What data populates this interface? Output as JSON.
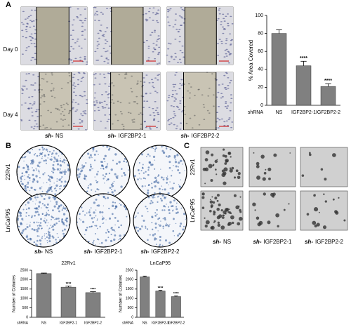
{
  "figure": {
    "panel_labels": [
      "A",
      "B",
      "C"
    ],
    "panel_a": {
      "row_labels": [
        "Day 0",
        "Day 4"
      ],
      "column_labels": [
        {
          "prefix": "sh-",
          "name": "NS"
        },
        {
          "prefix": "sh-",
          "name": "IGF2BP2-1"
        },
        {
          "prefix": "sh-",
          "name": "IGF2BP2-2"
        }
      ]
    },
    "panel_b": {
      "row_labels": [
        "22Rv1",
        "LnCaP95"
      ],
      "column_labels": [
        {
          "prefix": "sh-",
          "name": "NS"
        },
        {
          "prefix": "sh-",
          "name": "IGF2BP2-1"
        },
        {
          "prefix": "sh-",
          "name": "IGF2BP2-2"
        }
      ]
    },
    "panel_c": {
      "row_labels": [
        "22Rv1",
        "LnCaP95"
      ],
      "column_labels": [
        {
          "prefix": "sh-",
          "name": "NS"
        },
        {
          "prefix": "sh-",
          "name": "IGF2BP2-1"
        },
        {
          "prefix": "sh-",
          "name": "IGF2BP2-2"
        }
      ]
    }
  },
  "chart_data": [
    {
      "type": "bar",
      "ylabel": "% Area Covered",
      "xlabel": "shRNA",
      "categories": [
        "NS",
        "IGF2BP2-1",
        "IGF2BP2-2"
      ],
      "values": [
        80,
        44,
        21
      ],
      "errors": [
        4,
        5,
        3
      ],
      "annotations": [
        null,
        "****",
        "****"
      ],
      "ylim": [
        0,
        100
      ],
      "yticks": [
        0,
        20,
        40,
        60,
        80,
        100
      ],
      "color": "#808080"
    },
    {
      "type": "bar",
      "title": "22Rv1",
      "ylabel": "Number of Colonies",
      "xlabel": "shRNA",
      "categories": [
        "NS",
        "IGF2BP2-1",
        "IGF2BP2-2"
      ],
      "values": [
        2320,
        1600,
        1310
      ],
      "errors": [
        30,
        60,
        50
      ],
      "annotations": [
        null,
        "****",
        "****"
      ],
      "ylim": [
        0,
        2500
      ],
      "yticks": [
        0,
        500,
        1000,
        1500,
        2000,
        2500
      ],
      "color": "#808080"
    },
    {
      "type": "bar",
      "title": "LnCaP95",
      "ylabel": "Number of Colonies",
      "xlabel": "shRNA",
      "categories": [
        "NS",
        "IGF2BP2-1",
        "IGF2BP2-2"
      ],
      "values": [
        2150,
        1400,
        1100
      ],
      "errors": [
        40,
        30,
        30
      ],
      "annotations": [
        null,
        "****",
        "****"
      ],
      "ylim": [
        0,
        2500
      ],
      "yticks": [
        0,
        500,
        1000,
        1500,
        2000,
        2500
      ],
      "color": "#808080"
    }
  ]
}
